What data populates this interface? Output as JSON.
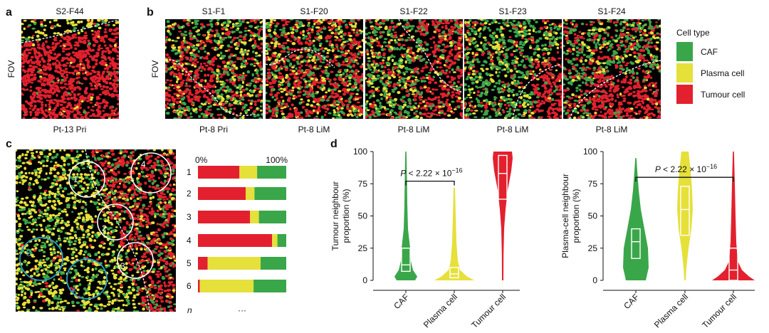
{
  "colors": {
    "caf": "#3aa64a",
    "plasma": "#e6e03a",
    "tumour": "#e3202e",
    "fov_bg": "#000000",
    "circle_white": "#ffffff",
    "circle_blue": "#2aa0c8"
  },
  "panel_a": {
    "letter": "a",
    "title": "S2-F44",
    "ylabel": "FOV",
    "caption": "Pt-13 Pri"
  },
  "panel_b": {
    "letter": "b",
    "ylabel": "FOV",
    "fovs": [
      {
        "title": "S1-F1",
        "caption": "Pt-8 Pri"
      },
      {
        "title": "S1-F20",
        "caption": "Pt-8 LiM"
      },
      {
        "title": "S1-F22",
        "caption": "Pt-8 LiM"
      },
      {
        "title": "S1-F23",
        "caption": "Pt-8 LiM"
      },
      {
        "title": "S1-F24",
        "caption": "Pt-8 LiM"
      }
    ]
  },
  "legend": {
    "title": "Cell type",
    "items": [
      {
        "label": "CAF",
        "color": "#3aa64a"
      },
      {
        "label": "Plasma cell",
        "color": "#e6e03a"
      },
      {
        "label": "Tumour cell",
        "color": "#e3202e"
      }
    ]
  },
  "panel_c": {
    "letter": "c",
    "circle_labels": [
      "1",
      "2",
      "3",
      "4",
      "5",
      "6"
    ],
    "bars_axis_start": "0%",
    "bars_axis_end": "100%",
    "bar_rows": [
      {
        "label": "1",
        "tumour": 0.47,
        "plasma": 0.2,
        "caf": 0.33
      },
      {
        "label": "2",
        "tumour": 0.54,
        "plasma": 0.1,
        "caf": 0.36
      },
      {
        "label": "3",
        "tumour": 0.59,
        "plasma": 0.1,
        "caf": 0.31
      },
      {
        "label": "4",
        "tumour": 0.84,
        "plasma": 0.06,
        "caf": 0.1
      },
      {
        "label": "5",
        "tumour": 0.11,
        "plasma": 0.6,
        "caf": 0.29
      },
      {
        "label": "6",
        "tumour": 0.02,
        "plasma": 0.61,
        "caf": 0.37
      }
    ],
    "n_label": "n",
    "ellipsis": "···"
  },
  "chart_data": [
    {
      "type": "violin",
      "panel": "d-left",
      "ylabel_line1": "Tumour neighbour",
      "ylabel_line2": "proportion (%)",
      "ylim": [
        0,
        100
      ],
      "yticks": [
        "0",
        "25",
        "50",
        "75",
        "100"
      ],
      "categories": [
        "CAF",
        "Plasma cell",
        "Tumour cell"
      ],
      "boxes": [
        {
          "q1": 7,
          "median": 12,
          "q3": 25
        },
        {
          "q1": 2,
          "median": 5,
          "q3": 10
        },
        {
          "q1": 63,
          "median": 83,
          "q3": 97
        }
      ],
      "pvalue_prefix": "P < 2.22 × 10",
      "pvalue_exp": "−16",
      "bracket_y": 77,
      "bracket_between": [
        "CAF",
        "Plasma cell"
      ]
    },
    {
      "type": "violin",
      "panel": "d-right",
      "ylabel_line1": "Plasma-cell neighbour",
      "ylabel_line2": "proportion (%)",
      "ylim": [
        0,
        100
      ],
      "yticks": [
        "0",
        "25",
        "50",
        "75",
        "100"
      ],
      "categories": [
        "CAF",
        "Plasma cell",
        "Tumour cell"
      ],
      "boxes": [
        {
          "q1": 17,
          "median": 30,
          "q3": 40
        },
        {
          "q1": 35,
          "median": 55,
          "q3": 73
        },
        {
          "q1": 0,
          "median": 8,
          "q3": 25
        }
      ],
      "pvalue_prefix": "P < 2.22 × 10",
      "pvalue_exp": "−16",
      "bracket_y": 80,
      "bracket_between": [
        "CAF",
        "Tumour cell"
      ]
    }
  ],
  "panel_d": {
    "letter": "d"
  }
}
